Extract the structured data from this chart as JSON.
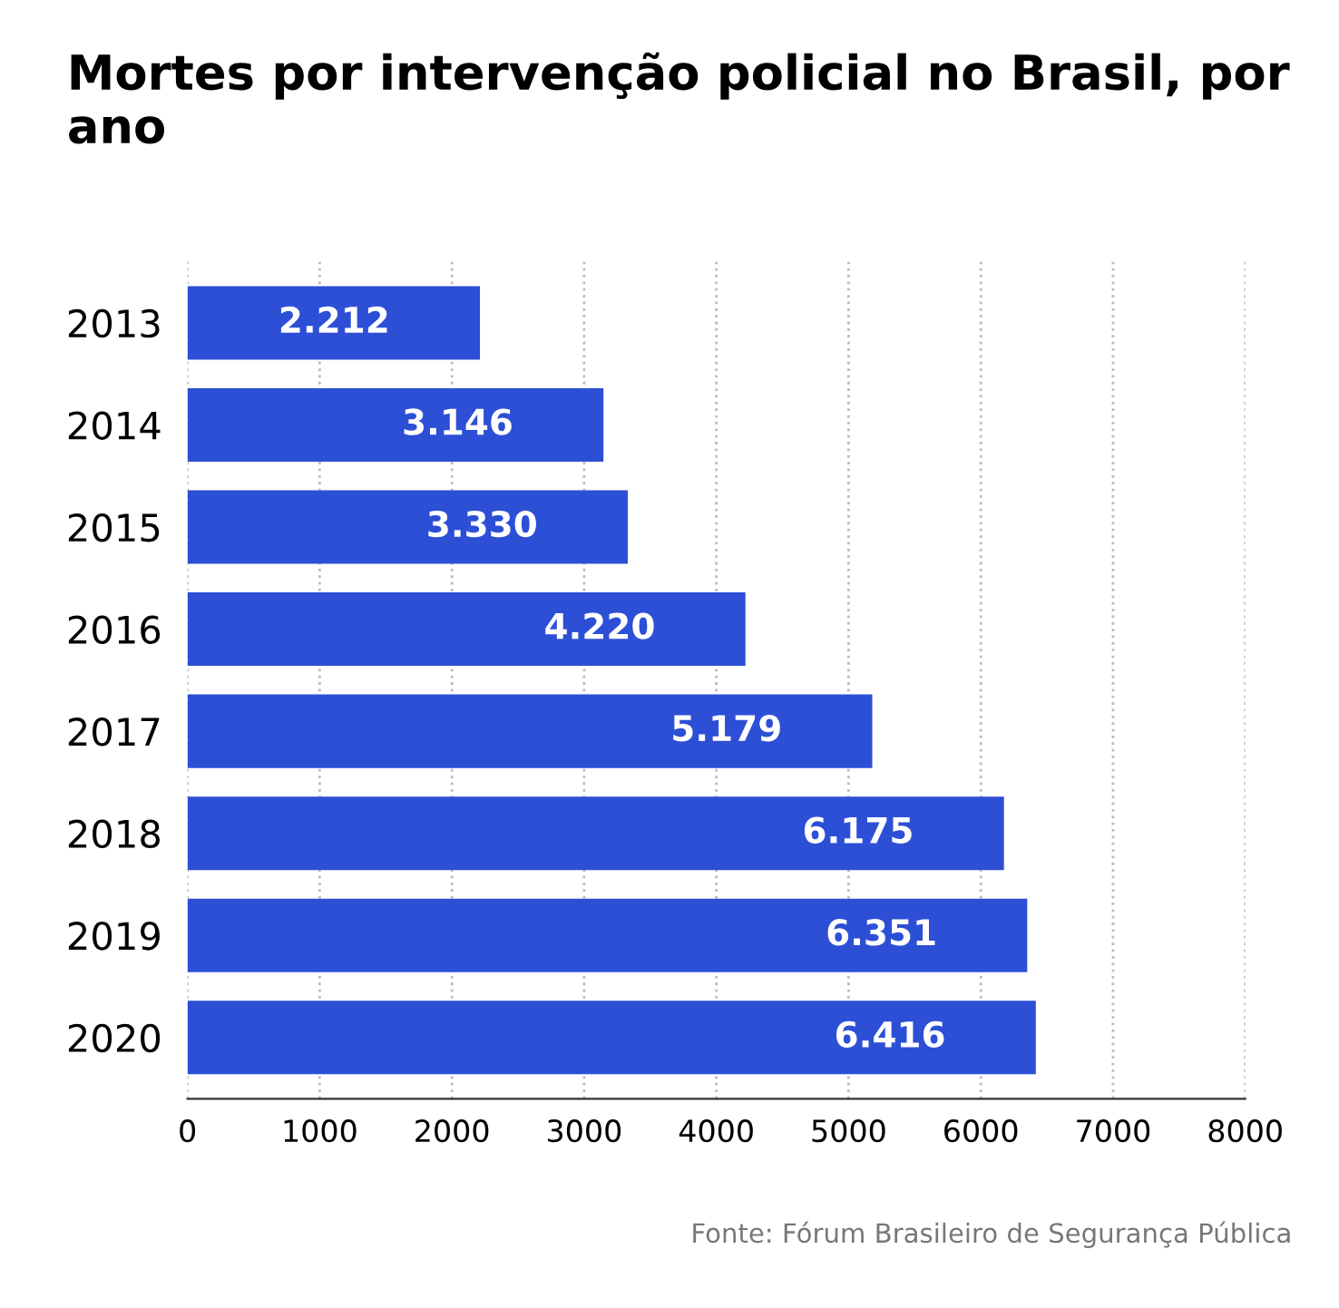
{
  "chart_data": {
    "type": "bar",
    "orientation": "horizontal",
    "title": "Mortes por intervenção policial no Brasil, por ano",
    "categories": [
      "2013",
      "2014",
      "2015",
      "2016",
      "2017",
      "2018",
      "2019",
      "2020"
    ],
    "values": [
      2212,
      3146,
      3330,
      4220,
      5179,
      6175,
      6351,
      6416
    ],
    "value_labels": [
      "2.212",
      "3.146",
      "3.330",
      "4.220",
      "5.179",
      "6.175",
      "6.351",
      "6.416"
    ],
    "color": "#2d4fd6",
    "xlim": [
      0,
      8000
    ],
    "xticks": [
      0,
      1000,
      2000,
      3000,
      4000,
      5000,
      6000,
      7000,
      8000
    ],
    "grid": "x",
    "legend": false,
    "annotations": [
      "Fonte: Fórum Brasileiro de Segurança Pública"
    ]
  }
}
